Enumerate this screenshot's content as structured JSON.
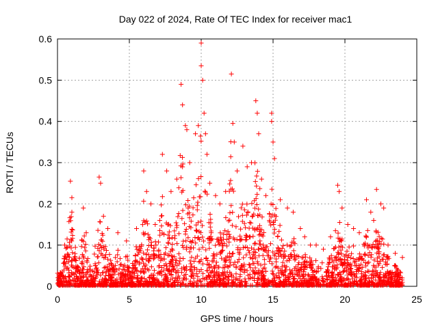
{
  "chart_data": {
    "type": "scatter",
    "title": "Day 022 of 2024, Rate Of TEC Index for receiver mac1",
    "xlabel": "GPS time / hours",
    "ylabel": "ROTI / TECUs",
    "xlim": [
      0,
      25
    ],
    "ylim": [
      0,
      0.6
    ],
    "xticks": [
      "0",
      "5",
      "10",
      "15",
      "20",
      "25"
    ],
    "yticks": [
      "0",
      "0.1",
      "0.2",
      "0.3",
      "0.4",
      "0.5",
      "0.6"
    ],
    "grid": true,
    "marker": "+",
    "color": "#ff0000",
    "series": [
      {
        "values_description_free": true,
        "points": [
          [
            0.5,
            0.1
          ],
          [
            0.9,
            0.255
          ],
          [
            1.0,
            0.18
          ],
          [
            1.0,
            0.215
          ],
          [
            1.8,
            0.19
          ],
          [
            2.0,
            0.13
          ],
          [
            2.9,
            0.265
          ],
          [
            3.0,
            0.25
          ],
          [
            3.2,
            0.17
          ],
          [
            3.5,
            0.14
          ],
          [
            4.2,
            0.13
          ],
          [
            4.8,
            0.11
          ],
          [
            5.5,
            0.14
          ],
          [
            6.0,
            0.28
          ],
          [
            6.2,
            0.23
          ],
          [
            6.5,
            0.2
          ],
          [
            6.8,
            0.15
          ],
          [
            7.3,
            0.32
          ],
          [
            7.6,
            0.28
          ],
          [
            7.9,
            0.23
          ],
          [
            8.3,
            0.26
          ],
          [
            8.6,
            0.49
          ],
          [
            8.7,
            0.44
          ],
          [
            8.9,
            0.39
          ],
          [
            9.0,
            0.38
          ],
          [
            9.2,
            0.3
          ],
          [
            9.6,
            0.37
          ],
          [
            9.8,
            0.39
          ],
          [
            10.0,
            0.59
          ],
          [
            10.0,
            0.535
          ],
          [
            10.1,
            0.5
          ],
          [
            10.2,
            0.42
          ],
          [
            10.3,
            0.37
          ],
          [
            10.4,
            0.32
          ],
          [
            10.6,
            0.25
          ],
          [
            11.0,
            0.22
          ],
          [
            11.3,
            0.2
          ],
          [
            11.7,
            0.23
          ],
          [
            12.1,
            0.515
          ],
          [
            12.2,
            0.395
          ],
          [
            12.3,
            0.35
          ],
          [
            12.5,
            0.28
          ],
          [
            12.9,
            0.34
          ],
          [
            13.2,
            0.29
          ],
          [
            13.5,
            0.3
          ],
          [
            13.8,
            0.45
          ],
          [
            13.9,
            0.42
          ],
          [
            14.0,
            0.37
          ],
          [
            14.2,
            0.26
          ],
          [
            14.5,
            0.22
          ],
          [
            14.9,
            0.42
          ],
          [
            14.9,
            0.4
          ],
          [
            15.0,
            0.35
          ],
          [
            15.1,
            0.31
          ],
          [
            15.5,
            0.21
          ],
          [
            16.0,
            0.19
          ],
          [
            16.4,
            0.18
          ],
          [
            16.9,
            0.14
          ],
          [
            17.2,
            0.12
          ],
          [
            17.6,
            0.1
          ],
          [
            18.0,
            0.1
          ],
          [
            18.5,
            0.09
          ],
          [
            19.0,
            0.12
          ],
          [
            19.5,
            0.245
          ],
          [
            19.6,
            0.23
          ],
          [
            19.8,
            0.19
          ],
          [
            20.2,
            0.15
          ],
          [
            20.6,
            0.14
          ],
          [
            21.0,
            0.13
          ],
          [
            21.5,
            0.21
          ],
          [
            21.8,
            0.18
          ],
          [
            22.0,
            0.16
          ],
          [
            22.2,
            0.235
          ],
          [
            22.5,
            0.2
          ],
          [
            22.7,
            0.19
          ],
          [
            23.0,
            0.1
          ],
          [
            23.5,
            0.08
          ],
          [
            24.0,
            0.07
          ]
        ]
      }
    ]
  }
}
